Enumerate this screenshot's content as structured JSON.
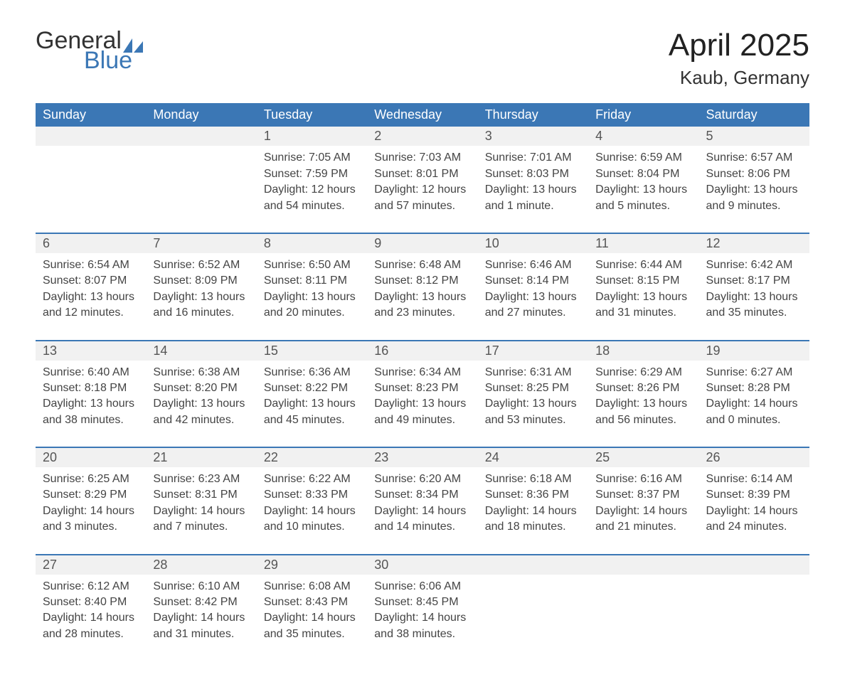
{
  "brand": {
    "general": "General",
    "blue": "Blue",
    "sail_color": "#3b77b5"
  },
  "title": "April 2025",
  "location": "Kaub, Germany",
  "header_bg": "#3b77b5",
  "header_fg": "#ffffff",
  "daynum_bg": "#f1f1f1",
  "row_divider": "#3b77b5",
  "text_color": "#444444",
  "columns": [
    "Sunday",
    "Monday",
    "Tuesday",
    "Wednesday",
    "Thursday",
    "Friday",
    "Saturday"
  ],
  "weeks": [
    [
      {
        "day": "",
        "sunrise": "",
        "sunset": "",
        "daylight1": "",
        "daylight2": ""
      },
      {
        "day": "",
        "sunrise": "",
        "sunset": "",
        "daylight1": "",
        "daylight2": ""
      },
      {
        "day": "1",
        "sunrise": "Sunrise: 7:05 AM",
        "sunset": "Sunset: 7:59 PM",
        "daylight1": "Daylight: 12 hours",
        "daylight2": "and 54 minutes."
      },
      {
        "day": "2",
        "sunrise": "Sunrise: 7:03 AM",
        "sunset": "Sunset: 8:01 PM",
        "daylight1": "Daylight: 12 hours",
        "daylight2": "and 57 minutes."
      },
      {
        "day": "3",
        "sunrise": "Sunrise: 7:01 AM",
        "sunset": "Sunset: 8:03 PM",
        "daylight1": "Daylight: 13 hours",
        "daylight2": "and 1 minute."
      },
      {
        "day": "4",
        "sunrise": "Sunrise: 6:59 AM",
        "sunset": "Sunset: 8:04 PM",
        "daylight1": "Daylight: 13 hours",
        "daylight2": "and 5 minutes."
      },
      {
        "day": "5",
        "sunrise": "Sunrise: 6:57 AM",
        "sunset": "Sunset: 8:06 PM",
        "daylight1": "Daylight: 13 hours",
        "daylight2": "and 9 minutes."
      }
    ],
    [
      {
        "day": "6",
        "sunrise": "Sunrise: 6:54 AM",
        "sunset": "Sunset: 8:07 PM",
        "daylight1": "Daylight: 13 hours",
        "daylight2": "and 12 minutes."
      },
      {
        "day": "7",
        "sunrise": "Sunrise: 6:52 AM",
        "sunset": "Sunset: 8:09 PM",
        "daylight1": "Daylight: 13 hours",
        "daylight2": "and 16 minutes."
      },
      {
        "day": "8",
        "sunrise": "Sunrise: 6:50 AM",
        "sunset": "Sunset: 8:11 PM",
        "daylight1": "Daylight: 13 hours",
        "daylight2": "and 20 minutes."
      },
      {
        "day": "9",
        "sunrise": "Sunrise: 6:48 AM",
        "sunset": "Sunset: 8:12 PM",
        "daylight1": "Daylight: 13 hours",
        "daylight2": "and 23 minutes."
      },
      {
        "day": "10",
        "sunrise": "Sunrise: 6:46 AM",
        "sunset": "Sunset: 8:14 PM",
        "daylight1": "Daylight: 13 hours",
        "daylight2": "and 27 minutes."
      },
      {
        "day": "11",
        "sunrise": "Sunrise: 6:44 AM",
        "sunset": "Sunset: 8:15 PM",
        "daylight1": "Daylight: 13 hours",
        "daylight2": "and 31 minutes."
      },
      {
        "day": "12",
        "sunrise": "Sunrise: 6:42 AM",
        "sunset": "Sunset: 8:17 PM",
        "daylight1": "Daylight: 13 hours",
        "daylight2": "and 35 minutes."
      }
    ],
    [
      {
        "day": "13",
        "sunrise": "Sunrise: 6:40 AM",
        "sunset": "Sunset: 8:18 PM",
        "daylight1": "Daylight: 13 hours",
        "daylight2": "and 38 minutes."
      },
      {
        "day": "14",
        "sunrise": "Sunrise: 6:38 AM",
        "sunset": "Sunset: 8:20 PM",
        "daylight1": "Daylight: 13 hours",
        "daylight2": "and 42 minutes."
      },
      {
        "day": "15",
        "sunrise": "Sunrise: 6:36 AM",
        "sunset": "Sunset: 8:22 PM",
        "daylight1": "Daylight: 13 hours",
        "daylight2": "and 45 minutes."
      },
      {
        "day": "16",
        "sunrise": "Sunrise: 6:34 AM",
        "sunset": "Sunset: 8:23 PM",
        "daylight1": "Daylight: 13 hours",
        "daylight2": "and 49 minutes."
      },
      {
        "day": "17",
        "sunrise": "Sunrise: 6:31 AM",
        "sunset": "Sunset: 8:25 PM",
        "daylight1": "Daylight: 13 hours",
        "daylight2": "and 53 minutes."
      },
      {
        "day": "18",
        "sunrise": "Sunrise: 6:29 AM",
        "sunset": "Sunset: 8:26 PM",
        "daylight1": "Daylight: 13 hours",
        "daylight2": "and 56 minutes."
      },
      {
        "day": "19",
        "sunrise": "Sunrise: 6:27 AM",
        "sunset": "Sunset: 8:28 PM",
        "daylight1": "Daylight: 14 hours",
        "daylight2": "and 0 minutes."
      }
    ],
    [
      {
        "day": "20",
        "sunrise": "Sunrise: 6:25 AM",
        "sunset": "Sunset: 8:29 PM",
        "daylight1": "Daylight: 14 hours",
        "daylight2": "and 3 minutes."
      },
      {
        "day": "21",
        "sunrise": "Sunrise: 6:23 AM",
        "sunset": "Sunset: 8:31 PM",
        "daylight1": "Daylight: 14 hours",
        "daylight2": "and 7 minutes."
      },
      {
        "day": "22",
        "sunrise": "Sunrise: 6:22 AM",
        "sunset": "Sunset: 8:33 PM",
        "daylight1": "Daylight: 14 hours",
        "daylight2": "and 10 minutes."
      },
      {
        "day": "23",
        "sunrise": "Sunrise: 6:20 AM",
        "sunset": "Sunset: 8:34 PM",
        "daylight1": "Daylight: 14 hours",
        "daylight2": "and 14 minutes."
      },
      {
        "day": "24",
        "sunrise": "Sunrise: 6:18 AM",
        "sunset": "Sunset: 8:36 PM",
        "daylight1": "Daylight: 14 hours",
        "daylight2": "and 18 minutes."
      },
      {
        "day": "25",
        "sunrise": "Sunrise: 6:16 AM",
        "sunset": "Sunset: 8:37 PM",
        "daylight1": "Daylight: 14 hours",
        "daylight2": "and 21 minutes."
      },
      {
        "day": "26",
        "sunrise": "Sunrise: 6:14 AM",
        "sunset": "Sunset: 8:39 PM",
        "daylight1": "Daylight: 14 hours",
        "daylight2": "and 24 minutes."
      }
    ],
    [
      {
        "day": "27",
        "sunrise": "Sunrise: 6:12 AM",
        "sunset": "Sunset: 8:40 PM",
        "daylight1": "Daylight: 14 hours",
        "daylight2": "and 28 minutes."
      },
      {
        "day": "28",
        "sunrise": "Sunrise: 6:10 AM",
        "sunset": "Sunset: 8:42 PM",
        "daylight1": "Daylight: 14 hours",
        "daylight2": "and 31 minutes."
      },
      {
        "day": "29",
        "sunrise": "Sunrise: 6:08 AM",
        "sunset": "Sunset: 8:43 PM",
        "daylight1": "Daylight: 14 hours",
        "daylight2": "and 35 minutes."
      },
      {
        "day": "30",
        "sunrise": "Sunrise: 6:06 AM",
        "sunset": "Sunset: 8:45 PM",
        "daylight1": "Daylight: 14 hours",
        "daylight2": "and 38 minutes."
      },
      {
        "day": "",
        "sunrise": "",
        "sunset": "",
        "daylight1": "",
        "daylight2": ""
      },
      {
        "day": "",
        "sunrise": "",
        "sunset": "",
        "daylight1": "",
        "daylight2": ""
      },
      {
        "day": "",
        "sunrise": "",
        "sunset": "",
        "daylight1": "",
        "daylight2": ""
      }
    ]
  ]
}
